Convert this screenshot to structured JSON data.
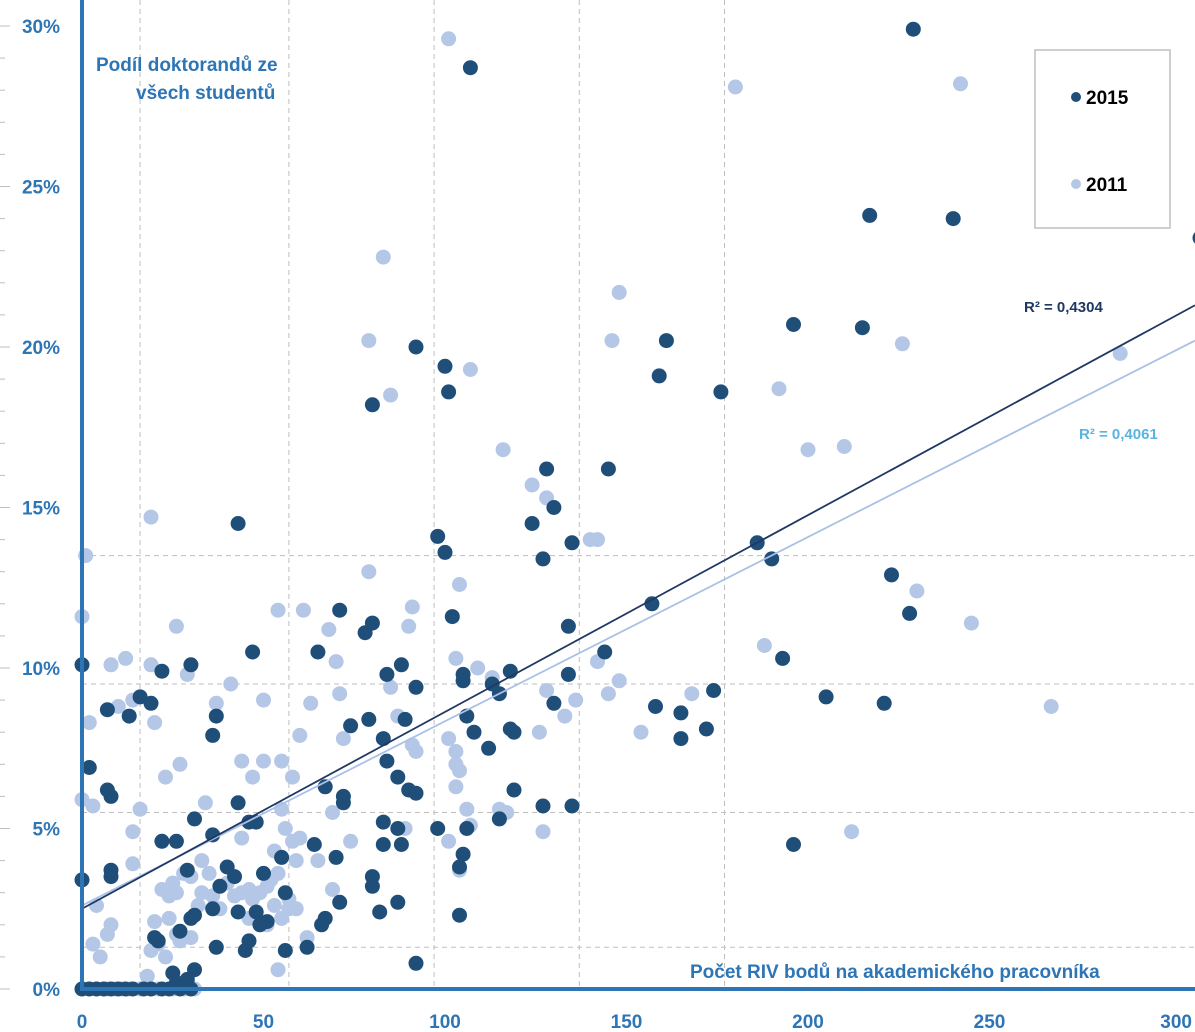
{
  "chart_data": {
    "type": "scatter",
    "title": "",
    "xlabel": "Počet RIV bodů na akademického pracovníka",
    "ylabel_lines": [
      "Podíl doktorandů ze",
      "všech studentů"
    ],
    "xlim": [
      0,
      310
    ],
    "ylim": [
      0,
      30
    ],
    "x_ticks": [
      0,
      50,
      100,
      150,
      200,
      250,
      300
    ],
    "x_tick_labels": [
      "0",
      "50",
      "100",
      "150",
      "200",
      "250",
      "300"
    ],
    "y_ticks": [
      0,
      5,
      10,
      15,
      20,
      25,
      30
    ],
    "y_tick_labels": [
      "0%",
      "5%",
      "10%",
      "15%",
      "20%",
      "25%",
      "30%"
    ],
    "grid": true,
    "legend_position": "top-right",
    "series": [
      {
        "name": "2015",
        "color": "#1f4e79",
        "trend_color": "#1f3864",
        "trend": {
          "intercept": 2.5,
          "end_y": 21.3
        },
        "r2_label": "R² = 0,4304",
        "points": [
          [
            229,
            29.9
          ],
          [
            107,
            28.7
          ],
          [
            217,
            24.1
          ],
          [
            240,
            24
          ],
          [
            308,
            23.4
          ],
          [
            92,
            20
          ],
          [
            196,
            20.7
          ],
          [
            215,
            20.6
          ],
          [
            161,
            20.2
          ],
          [
            100,
            19.4
          ],
          [
            159,
            19.1
          ],
          [
            80,
            18.2
          ],
          [
            101,
            18.6
          ],
          [
            176,
            18.6
          ],
          [
            43,
            14.5
          ],
          [
            128,
            16.2
          ],
          [
            145,
            16.2
          ],
          [
            130,
            15
          ],
          [
            124,
            14.5
          ],
          [
            98,
            14.1
          ],
          [
            100,
            13.6
          ],
          [
            135,
            13.9
          ],
          [
            127,
            13.4
          ],
          [
            186,
            13.9
          ],
          [
            190,
            13.4
          ],
          [
            223,
            12.9
          ],
          [
            228,
            11.7
          ],
          [
            157,
            12
          ],
          [
            102,
            11.6
          ],
          [
            71,
            11.8
          ],
          [
            80,
            11.4
          ],
          [
            78,
            11.1
          ],
          [
            144,
            10.5
          ],
          [
            134,
            11.3
          ],
          [
            193,
            10.3
          ],
          [
            0,
            10.1
          ],
          [
            22,
            9.9
          ],
          [
            30,
            10.1
          ],
          [
            47,
            10.5
          ],
          [
            65,
            10.5
          ],
          [
            88,
            10.1
          ],
          [
            84,
            9.8
          ],
          [
            105,
            9.8
          ],
          [
            113,
            9.5
          ],
          [
            118,
            9.9
          ],
          [
            134,
            9.8
          ],
          [
            92,
            9.4
          ],
          [
            105,
            9.6
          ],
          [
            174,
            9.3
          ],
          [
            205,
            9.1
          ],
          [
            221,
            8.9
          ],
          [
            158,
            8.8
          ],
          [
            165,
            8.6
          ],
          [
            172,
            8.1
          ],
          [
            115,
            9.2
          ],
          [
            130,
            8.9
          ],
          [
            106,
            8.5
          ],
          [
            89,
            8.4
          ],
          [
            79,
            8.4
          ],
          [
            74,
            8.2
          ],
          [
            37,
            8.5
          ],
          [
            36,
            7.9
          ],
          [
            16,
            9.1
          ],
          [
            19,
            8.9
          ],
          [
            13,
            8.5
          ],
          [
            7,
            8.7
          ],
          [
            118,
            8.1
          ],
          [
            119,
            8
          ],
          [
            165,
            7.8
          ],
          [
            112,
            7.5
          ],
          [
            83,
            7.8
          ],
          [
            84,
            7.1
          ],
          [
            108,
            8
          ],
          [
            2,
            6.9
          ],
          [
            7,
            6.2
          ],
          [
            8,
            6
          ],
          [
            67,
            6.3
          ],
          [
            72,
            6
          ],
          [
            72,
            5.8
          ],
          [
            87,
            6.6
          ],
          [
            90,
            6.2
          ],
          [
            92,
            6.1
          ],
          [
            119,
            6.2
          ],
          [
            127,
            5.7
          ],
          [
            135,
            5.7
          ],
          [
            43,
            5.8
          ],
          [
            46,
            5.2
          ],
          [
            48,
            5.2
          ],
          [
            31,
            5.3
          ],
          [
            22,
            4.6
          ],
          [
            26,
            4.6
          ],
          [
            36,
            4.8
          ],
          [
            83,
            5.2
          ],
          [
            87,
            5
          ],
          [
            98,
            5
          ],
          [
            115,
            5.3
          ],
          [
            105,
            4.2
          ],
          [
            104,
            3.8
          ],
          [
            106,
            5
          ],
          [
            64,
            4.5
          ],
          [
            70,
            4.1
          ],
          [
            83,
            4.5
          ],
          [
            88,
            4.5
          ],
          [
            196,
            4.5
          ],
          [
            0,
            3.4
          ],
          [
            8,
            3.5
          ],
          [
            8,
            3.7
          ],
          [
            29,
            3.7
          ],
          [
            38,
            3.2
          ],
          [
            40,
            3.8
          ],
          [
            42,
            3.5
          ],
          [
            50,
            3.6
          ],
          [
            55,
            4.1
          ],
          [
            56,
            3
          ],
          [
            36,
            2.5
          ],
          [
            31,
            2.3
          ],
          [
            43,
            2.4
          ],
          [
            48,
            2.4
          ],
          [
            71,
            2.7
          ],
          [
            82,
            2.4
          ],
          [
            87,
            2.7
          ],
          [
            104,
            2.3
          ],
          [
            80,
            3.2
          ],
          [
            80,
            3.5
          ],
          [
            66,
            2
          ],
          [
            67,
            2.2
          ],
          [
            49,
            2
          ],
          [
            51,
            2.1
          ],
          [
            30,
            2.2
          ],
          [
            37,
            1.3
          ],
          [
            45,
            1.2
          ],
          [
            46,
            1.5
          ],
          [
            56,
            1.2
          ],
          [
            62,
            1.3
          ],
          [
            20,
            1.6
          ],
          [
            21,
            1.5
          ],
          [
            27,
            1.8
          ],
          [
            25,
            0.5
          ],
          [
            31,
            0.6
          ],
          [
            92,
            0.8
          ],
          [
            29,
            0.3
          ],
          [
            26,
            0.2
          ],
          [
            0,
            0
          ],
          [
            2,
            0
          ],
          [
            4,
            0
          ],
          [
            6,
            0
          ],
          [
            8,
            0
          ],
          [
            10,
            0
          ],
          [
            12,
            0
          ],
          [
            14,
            0
          ],
          [
            17,
            0
          ],
          [
            19,
            0
          ],
          [
            22,
            0
          ],
          [
            24,
            0
          ],
          [
            27,
            0
          ],
          [
            30,
            0
          ]
        ]
      },
      {
        "name": "2011",
        "color": "#b4c7e7",
        "trend_color": "#a9c1e6",
        "trend": {
          "intercept": 2.6,
          "end_y": 20.2
        },
        "r2_label": "R² = 0,4061",
        "points": [
          [
            101,
            29.6
          ],
          [
            180,
            28.1
          ],
          [
            242,
            28.2
          ],
          [
            83,
            22.8
          ],
          [
            148,
            21.7
          ],
          [
            79,
            20.2
          ],
          [
            146,
            20.2
          ],
          [
            226,
            20.1
          ],
          [
            286,
            19.8
          ],
          [
            107,
            19.3
          ],
          [
            192,
            18.7
          ],
          [
            85,
            18.5
          ],
          [
            116,
            16.8
          ],
          [
            200,
            16.8
          ],
          [
            210,
            16.9
          ],
          [
            124,
            15.7
          ],
          [
            128,
            15.3
          ],
          [
            142,
            14
          ],
          [
            140,
            14
          ],
          [
            19,
            14.7
          ],
          [
            1,
            13.5
          ],
          [
            79,
            13
          ],
          [
            104,
            12.6
          ],
          [
            230,
            12.4
          ],
          [
            0,
            11.6
          ],
          [
            54,
            11.8
          ],
          [
            61,
            11.8
          ],
          [
            91,
            11.9
          ],
          [
            26,
            11.3
          ],
          [
            68,
            11.2
          ],
          [
            90,
            11.3
          ],
          [
            245,
            11.4
          ],
          [
            12,
            10.3
          ],
          [
            8,
            10.1
          ],
          [
            19,
            10.1
          ],
          [
            29,
            9.8
          ],
          [
            70,
            10.2
          ],
          [
            103,
            10.3
          ],
          [
            142,
            10.2
          ],
          [
            148,
            9.6
          ],
          [
            188,
            10.7
          ],
          [
            41,
            9.5
          ],
          [
            50,
            9
          ],
          [
            71,
            9.2
          ],
          [
            85,
            9.4
          ],
          [
            109,
            10
          ],
          [
            113,
            9.7
          ],
          [
            128,
            9.3
          ],
          [
            136,
            9
          ],
          [
            145,
            9.2
          ],
          [
            168,
            9.2
          ],
          [
            267,
            8.8
          ],
          [
            10,
            8.8
          ],
          [
            14,
            9
          ],
          [
            2,
            8.3
          ],
          [
            20,
            8.3
          ],
          [
            37,
            8.9
          ],
          [
            63,
            8.9
          ],
          [
            87,
            8.5
          ],
          [
            133,
            8.5
          ],
          [
            154,
            8
          ],
          [
            126,
            8
          ],
          [
            60,
            7.9
          ],
          [
            72,
            7.8
          ],
          [
            101,
            7.8
          ],
          [
            103,
            7.4
          ],
          [
            44,
            7.1
          ],
          [
            50,
            7.1
          ],
          [
            55,
            7.1
          ],
          [
            91,
            7.6
          ],
          [
            92,
            7.4
          ],
          [
            103,
            7
          ],
          [
            104,
            6.8
          ],
          [
            27,
            7
          ],
          [
            23,
            6.6
          ],
          [
            47,
            6.6
          ],
          [
            58,
            6.6
          ],
          [
            0,
            5.9
          ],
          [
            3,
            5.7
          ],
          [
            16,
            5.6
          ],
          [
            34,
            5.8
          ],
          [
            55,
            5.6
          ],
          [
            69,
            5.5
          ],
          [
            106,
            5.6
          ],
          [
            115,
            5.6
          ],
          [
            117,
            5.5
          ],
          [
            103,
            6.3
          ],
          [
            44,
            4.7
          ],
          [
            53,
            4.3
          ],
          [
            56,
            5
          ],
          [
            58,
            4.6
          ],
          [
            60,
            4.7
          ],
          [
            74,
            4.6
          ],
          [
            101,
            4.6
          ],
          [
            127,
            4.9
          ],
          [
            212,
            4.9
          ],
          [
            14,
            4.9
          ],
          [
            14,
            3.9
          ],
          [
            25,
            3.3
          ],
          [
            28,
            3.6
          ],
          [
            30,
            3.5
          ],
          [
            33,
            4
          ],
          [
            35,
            3.6
          ],
          [
            40,
            3.3
          ],
          [
            46,
            3.1
          ],
          [
            52,
            3.4
          ],
          [
            54,
            3.6
          ],
          [
            59,
            4
          ],
          [
            65,
            4
          ],
          [
            89,
            5
          ],
          [
            104,
            3.7
          ],
          [
            107,
            5.1
          ],
          [
            22,
            3.1
          ],
          [
            24,
            2.9
          ],
          [
            26,
            3
          ],
          [
            33,
            3
          ],
          [
            36,
            2.9
          ],
          [
            38,
            2.5
          ],
          [
            42,
            2.9
          ],
          [
            44,
            3
          ],
          [
            47,
            2.8
          ],
          [
            49,
            3
          ],
          [
            51,
            3.2
          ],
          [
            53,
            2.6
          ],
          [
            55,
            2.2
          ],
          [
            57,
            2.8
          ],
          [
            59,
            2.5
          ],
          [
            69,
            3.1
          ],
          [
            4,
            2.6
          ],
          [
            8,
            2
          ],
          [
            20,
            2.1
          ],
          [
            24,
            2.2
          ],
          [
            26,
            1.7
          ],
          [
            27,
            1.5
          ],
          [
            30,
            1.6
          ],
          [
            32,
            2.6
          ],
          [
            46,
            2.2
          ],
          [
            48,
            2.2
          ],
          [
            51,
            2
          ],
          [
            57,
            2.5
          ],
          [
            62,
            1.6
          ],
          [
            7,
            1.7
          ],
          [
            19,
            1.2
          ],
          [
            21,
            1.4
          ],
          [
            23,
            1
          ],
          [
            3,
            1.4
          ],
          [
            5,
            1
          ],
          [
            54,
            0.6
          ],
          [
            18,
            0.4
          ],
          [
            0,
            0
          ],
          [
            2,
            0
          ],
          [
            4,
            0
          ],
          [
            6,
            0
          ],
          [
            7,
            0
          ],
          [
            9,
            0
          ],
          [
            11,
            0
          ],
          [
            13,
            0
          ],
          [
            16,
            0
          ],
          [
            19,
            0
          ],
          [
            21,
            0
          ],
          [
            25,
            0
          ],
          [
            28,
            0
          ],
          [
            30,
            0
          ],
          [
            31,
            0
          ]
        ]
      }
    ]
  }
}
